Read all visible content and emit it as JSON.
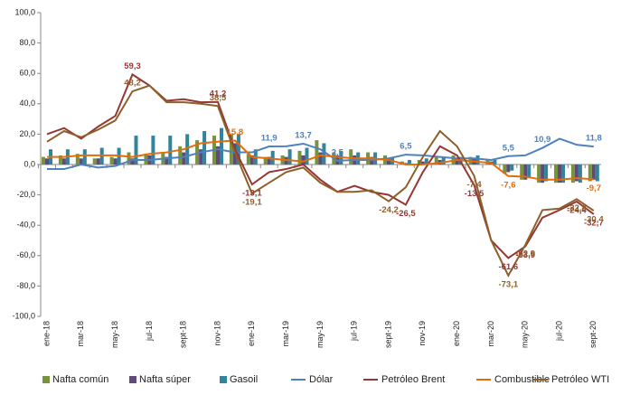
{
  "chart_data": {
    "type": "bar_line",
    "categories": [
      "ene-18",
      null,
      "mar-18",
      null,
      "may-18",
      null,
      "jul-18",
      null,
      "sept-18",
      null,
      "nov-18",
      null,
      "ene-19",
      null,
      "mar-19",
      null,
      "may-19",
      null,
      "jul-19",
      null,
      "sept-19",
      null,
      "nov-19",
      null,
      "ene-20",
      null,
      "mar-20",
      null,
      "may-20",
      null,
      "jul-20",
      null,
      "sept-20"
    ],
    "ylim": [
      -100,
      100
    ],
    "yticks": [
      {
        "value": -100,
        "label": "-100,0"
      },
      {
        "value": -80,
        "label": "-80,0"
      },
      {
        "value": -60,
        "label": "-60,0"
      },
      {
        "value": -40,
        "label": "-40,0"
      },
      {
        "value": -20,
        "label": "-20,0"
      },
      {
        "value": 0,
        "label": "0,0"
      },
      {
        "value": 20,
        "label": "20,0"
      },
      {
        "value": 40,
        "label": "40,0"
      },
      {
        "value": 60,
        "label": "60,0"
      },
      {
        "value": 80,
        "label": "80,0"
      },
      {
        "value": 100,
        "label": "100,0"
      }
    ],
    "series": [
      {
        "name": "Nafta común",
        "kind": "bar",
        "color": "#77933c",
        "values": [
          5,
          6,
          7,
          4,
          5,
          8,
          7,
          8,
          12,
          16,
          19,
          20,
          7,
          5,
          6,
          9,
          16,
          8,
          10,
          8,
          6,
          2,
          3,
          5,
          6,
          5,
          3,
          -6,
          -10,
          -12,
          -12,
          -12,
          -11
        ]
      },
      {
        "name": "Nafta súper",
        "kind": "bar",
        "color": "#604a7b",
        "values": [
          4,
          4,
          4,
          4,
          4,
          4,
          6,
          5,
          8,
          10,
          12,
          14,
          6,
          5,
          5,
          6,
          8,
          6,
          6,
          5,
          4,
          1,
          2,
          3,
          4,
          4,
          2,
          -5,
          -10,
          -12,
          -12,
          -11,
          -10
        ]
      },
      {
        "name": "Gasoil",
        "kind": "bar",
        "color": "#31849b",
        "values": [
          10,
          10,
          10,
          11,
          11,
          19,
          19,
          19,
          20,
          22,
          24,
          20,
          10,
          9,
          10,
          11,
          14,
          9,
          8,
          8,
          5,
          3,
          4,
          5,
          5,
          6,
          3,
          -4,
          -9,
          -11,
          -12,
          -12,
          -11
        ]
      },
      {
        "name": "Dólar",
        "kind": "line",
        "color": "#4f81bd",
        "values": [
          -3,
          -3,
          0,
          -2,
          -1,
          3,
          3,
          4,
          5,
          8,
          10,
          8,
          8,
          11.9,
          12,
          13.7,
          10,
          2.5,
          3,
          3,
          4,
          6.5,
          6,
          5,
          4,
          4,
          3,
          5.5,
          6,
          10.9,
          17,
          13,
          11.8
        ],
        "value_labels": [
          null,
          null,
          null,
          null,
          null,
          null,
          null,
          null,
          null,
          null,
          null,
          null,
          null,
          "11,9",
          null,
          "13,7",
          null,
          "2,5",
          null,
          null,
          null,
          "6,5",
          null,
          null,
          null,
          null,
          null,
          "5,5",
          null,
          "10,9",
          null,
          null,
          "11,8"
        ]
      },
      {
        "name": "Petróleo Brent",
        "kind": "line",
        "color": "#953735",
        "values": [
          20,
          24,
          17,
          25,
          32,
          59.3,
          52,
          42,
          43,
          41,
          41.2,
          10,
          -13.1,
          -5,
          -3,
          0,
          -10,
          -18,
          -14,
          -18,
          -20,
          -26.5,
          -5,
          12,
          6,
          -13.5,
          -50,
          -61.6,
          -53.9,
          -35,
          -30,
          -24.4,
          -32.7
        ],
        "value_labels": [
          null,
          null,
          null,
          null,
          null,
          "59,3",
          null,
          null,
          null,
          null,
          "41,2",
          null,
          "-13,1",
          null,
          null,
          null,
          null,
          null,
          null,
          null,
          null,
          "-26,5",
          null,
          null,
          null,
          "-13,5",
          null,
          "-61,6",
          "-53,9",
          null,
          null,
          "-24,4",
          "-32,7"
        ]
      },
      {
        "name": "Combustible",
        "kind": "line",
        "color": "#e46c0a",
        "values": [
          5,
          5,
          6,
          6,
          6,
          5,
          7,
          8,
          10,
          14,
          15,
          15.8,
          5,
          4,
          3,
          2,
          6,
          5,
          4,
          4,
          3,
          0,
          0,
          1,
          3,
          2,
          1,
          -7.6,
          -8,
          -10,
          -10,
          -9,
          -9.7
        ],
        "value_labels": [
          null,
          null,
          null,
          null,
          null,
          null,
          null,
          null,
          null,
          null,
          null,
          "15,8",
          null,
          null,
          null,
          null,
          null,
          null,
          null,
          null,
          null,
          null,
          null,
          null,
          null,
          null,
          null,
          "-7,6",
          null,
          null,
          null,
          null,
          "-9,7"
        ]
      },
      {
        "name": "Petróleo WTI",
        "kind": "line",
        "color": "#8f5f2a",
        "values": [
          15,
          22,
          18,
          23,
          29,
          48.2,
          52,
          41,
          41,
          40,
          38.5,
          8,
          -19.1,
          -12,
          -5,
          -2,
          -12,
          -18,
          -18,
          -17,
          -24.2,
          -15,
          5,
          22,
          12,
          -7.4,
          -50,
          -73.1,
          -52.9,
          -30,
          -29,
          -22.8,
          -30.4
        ],
        "value_labels": [
          null,
          null,
          null,
          null,
          null,
          "48,2",
          null,
          null,
          null,
          null,
          "38,5",
          null,
          "-19,1",
          null,
          null,
          null,
          null,
          null,
          null,
          null,
          "-24,2",
          null,
          null,
          null,
          null,
          "-7,4",
          null,
          "-73,1",
          "-52,9",
          null,
          null,
          "-22,8",
          "-30,4"
        ]
      }
    ]
  }
}
